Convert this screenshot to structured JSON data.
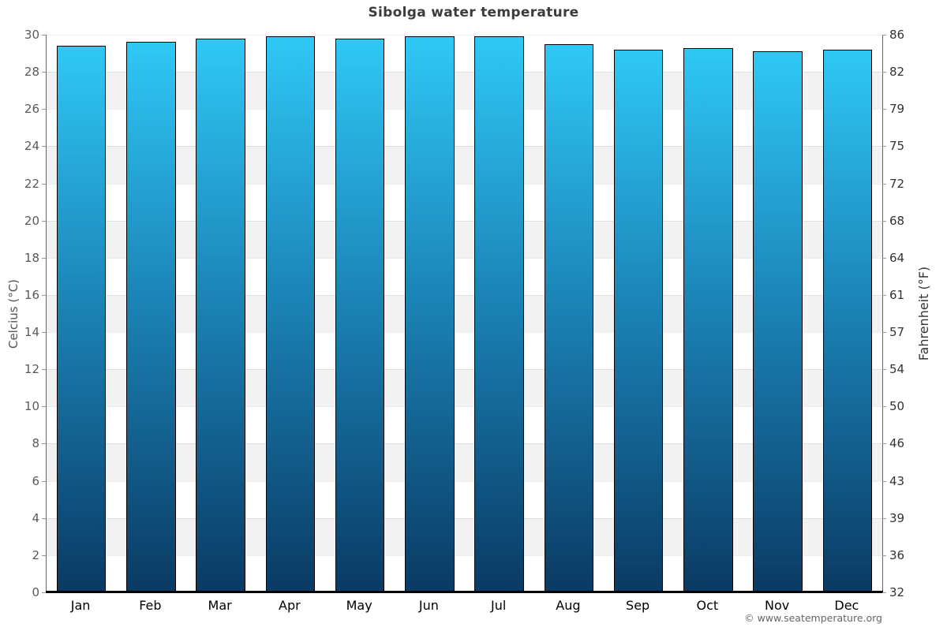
{
  "title": "Sibolga water temperature",
  "copyright": "© www.seatemperature.org",
  "chart_data": {
    "type": "bar",
    "title": "Sibolga water temperature",
    "categories": [
      "Jan",
      "Feb",
      "Mar",
      "Apr",
      "May",
      "Jun",
      "Jul",
      "Aug",
      "Sep",
      "Oct",
      "Nov",
      "Dec"
    ],
    "values": [
      29.4,
      29.6,
      29.8,
      29.9,
      29.8,
      29.9,
      29.9,
      29.5,
      29.2,
      29.3,
      29.1,
      29.2
    ],
    "unit": "°C",
    "ylabel_left": "Celcius (°C)",
    "ylabel_right": "Fahrenheit (°F)",
    "ylim": [
      0,
      30
    ],
    "yticks_left": [
      0,
      2,
      4,
      6,
      8,
      10,
      12,
      14,
      16,
      18,
      20,
      22,
      24,
      26,
      28,
      30
    ],
    "yticks_right": [
      32,
      36,
      39,
      43,
      46,
      50,
      54,
      57,
      61,
      64,
      68,
      72,
      75,
      79,
      82,
      86
    ],
    "grid": "alternating-horizontal-bands",
    "legend": "none"
  },
  "colors": {
    "bar_gradient_top": "#2fc8f5",
    "bar_gradient_mid": "#1a7fb2",
    "bar_gradient_bottom": "#0a3a63",
    "bar_border": "#000000",
    "band_gray": "#f2f2f2",
    "band_white": "#ffffff",
    "axis_line": "#666666",
    "bottom_axis_line": "#000000",
    "title_color": "#3c3c3c",
    "tick_label_left": "#5a5a5a",
    "tick_label_right": "#333333",
    "month_label": "#000000",
    "copyright_color": "#666666"
  }
}
